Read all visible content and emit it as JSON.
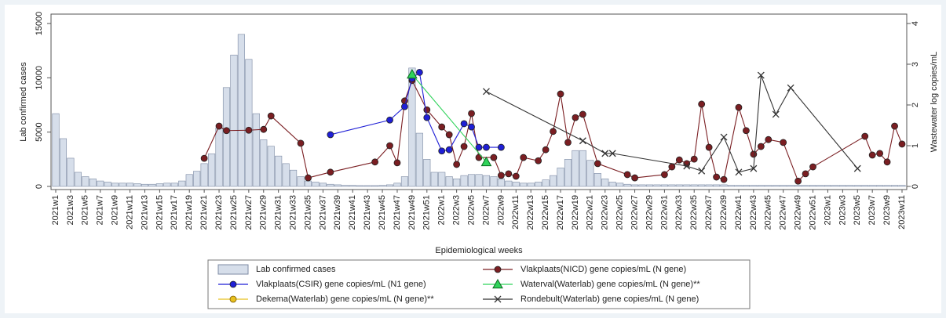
{
  "chart_data": {
    "type": "combo",
    "y_label": "Lab confirmed cases",
    "y2_label": "Wastewater log copies/mL",
    "x_label": "Epidemiological weeks",
    "categories": [
      "2021w1",
      null,
      "2021w3",
      null,
      "2021w5",
      null,
      "2021w7",
      null,
      "2021w9",
      null,
      "2021w11",
      null,
      "2021w13",
      null,
      "2021w15",
      null,
      "2021w17",
      null,
      "2021w19",
      null,
      "2021w21",
      null,
      "2021w23",
      null,
      "2021w25",
      null,
      "2021w27",
      null,
      "2021w29",
      null,
      "2021w31",
      null,
      "2021w33",
      null,
      "2021w35",
      null,
      "2021w37",
      null,
      "2021w39",
      null,
      "2021w41",
      null,
      "2021w43",
      null,
      "2021w45",
      null,
      "2021w47",
      null,
      "2021w49",
      null,
      "2021w51",
      null,
      "2022w1",
      null,
      "2022w3",
      null,
      "2022w5",
      null,
      "2022w7",
      null,
      "2022w9",
      null,
      "2022w11",
      null,
      "2022w13",
      null,
      "2022w15",
      null,
      "2022w17",
      null,
      "2022w19",
      null,
      "2022w21",
      null,
      "2022w23",
      null,
      "2022w25",
      null,
      "2022w27",
      null,
      "2022w29",
      null,
      "2022w31",
      null,
      "2022w33",
      null,
      "2022w35",
      null,
      "2022w37",
      null,
      "2022w39",
      null,
      "2022w41",
      null,
      "2022w43",
      null,
      "2022w45",
      null,
      "2022w47",
      null,
      "2022w49",
      null,
      "2022w51",
      null,
      "2023w1",
      null,
      "2023w3",
      null,
      "2023w5",
      null,
      "2023w7",
      null,
      "2023w9",
      null,
      "2023w11"
    ],
    "ylim": [
      0,
      15000
    ],
    "yticks": [
      0,
      5000,
      10000,
      15000
    ],
    "y2lim": [
      0,
      4
    ],
    "y2ticks": [
      0,
      1,
      2,
      3,
      4
    ],
    "series": [
      {
        "name": "Lab confirmed cases",
        "type": "bar",
        "color": "#d6deea",
        "values": [
          6700,
          4400,
          2600,
          1300,
          900,
          700,
          500,
          400,
          300,
          300,
          300,
          250,
          200,
          200,
          250,
          300,
          300,
          500,
          1100,
          1400,
          2100,
          3000,
          5400,
          9100,
          12100,
          14000,
          11700,
          6700,
          4300,
          3700,
          2800,
          2100,
          1500,
          900,
          500,
          400,
          300,
          200,
          150,
          100,
          100,
          80,
          80,
          80,
          100,
          150,
          300,
          900,
          10900,
          4900,
          2500,
          1300,
          1300,
          900,
          700,
          1000,
          1100,
          1100,
          1000,
          900,
          700,
          500,
          400,
          300,
          300,
          400,
          600,
          1000,
          1700,
          2500,
          3300,
          3300,
          2400,
          1200,
          700,
          400,
          300,
          200,
          150,
          150,
          150,
          150,
          150,
          150,
          150,
          150,
          150,
          150,
          150,
          150,
          150,
          100,
          100,
          100,
          100,
          100,
          100,
          100,
          100,
          100,
          100,
          100,
          100,
          100,
          100,
          100,
          100,
          100,
          100,
          100,
          100,
          100,
          100,
          100,
          100
        ]
      },
      {
        "name": "Vlakplaats(NICD) gene copies/mL (N gene)",
        "type": "line",
        "axis": "y2",
        "marker": "circle",
        "color": "#7a1e22",
        "values": [
          null,
          null,
          null,
          null,
          null,
          null,
          null,
          null,
          null,
          null,
          null,
          null,
          null,
          null,
          null,
          null,
          null,
          null,
          null,
          null,
          0.69,
          null,
          1.48,
          1.37,
          null,
          null,
          1.38,
          null,
          1.4,
          1.73,
          null,
          null,
          null,
          1.06,
          0.21,
          null,
          null,
          0.35,
          null,
          null,
          null,
          null,
          null,
          0.6,
          null,
          1.0,
          0.58,
          2.1,
          2.6,
          null,
          1.88,
          null,
          1.46,
          1.27,
          0.54,
          0.98,
          1.79,
          0.71,
          null,
          0.71,
          0.27,
          0.31,
          0.25,
          0.71,
          null,
          0.63,
          0.9,
          1.35,
          2.27,
          1.08,
          1.69,
          1.77,
          null,
          0.56,
          null,
          null,
          null,
          0.29,
          0.21,
          null,
          null,
          null,
          0.29,
          0.48,
          0.65,
          0.56,
          0.67,
          2.02,
          0.96,
          0.23,
          0.17,
          null,
          1.94,
          1.37,
          0.79,
          0.98,
          1.15,
          null,
          1.08,
          null,
          0.13,
          0.31,
          0.48,
          null,
          null,
          null,
          null,
          null,
          null,
          1.23,
          0.77,
          0.81,
          0.6,
          1.48,
          1.04
        ]
      },
      {
        "name": "Vlakplaats(CSIR) gene copies/mL (N1 gene)",
        "type": "line",
        "axis": "y2",
        "marker": "circle",
        "color": "#1f1fd6",
        "values": [
          null,
          null,
          null,
          null,
          null,
          null,
          null,
          null,
          null,
          null,
          null,
          null,
          null,
          null,
          null,
          null,
          null,
          null,
          null,
          null,
          null,
          null,
          null,
          null,
          null,
          null,
          null,
          null,
          null,
          null,
          null,
          null,
          null,
          null,
          null,
          null,
          null,
          1.27,
          null,
          null,
          null,
          null,
          null,
          null,
          null,
          1.63,
          null,
          1.96,
          2.65,
          2.8,
          1.69,
          null,
          0.87,
          0.9,
          null,
          1.54,
          1.46,
          0.96,
          0.96,
          null,
          0.96,
          null,
          null,
          null,
          null,
          null,
          null,
          null,
          null,
          null,
          null,
          null,
          null,
          null,
          null,
          null,
          null,
          null,
          null,
          null,
          null,
          null,
          null,
          null,
          null,
          null,
          null,
          null,
          null,
          null,
          null,
          null,
          null,
          null,
          null,
          null,
          null,
          null,
          null,
          null,
          null,
          null,
          null,
          null,
          null,
          null,
          null,
          null,
          null,
          null,
          null,
          null,
          null,
          null,
          null
        ]
      },
      {
        "name": "Waterval(Waterlab) gene copies/mL (N gene)**",
        "type": "line",
        "axis": "y2",
        "marker": "triangle",
        "color": "#2fd35a",
        "values": [
          null,
          null,
          null,
          null,
          null,
          null,
          null,
          null,
          null,
          null,
          null,
          null,
          null,
          null,
          null,
          null,
          null,
          null,
          null,
          null,
          null,
          null,
          null,
          null,
          null,
          null,
          null,
          null,
          null,
          null,
          null,
          null,
          null,
          null,
          null,
          null,
          null,
          null,
          null,
          null,
          null,
          null,
          null,
          null,
          null,
          null,
          null,
          null,
          2.75,
          null,
          null,
          null,
          null,
          null,
          null,
          null,
          null,
          null,
          0.6,
          null,
          null,
          null,
          null,
          null,
          null,
          null,
          null,
          null,
          null,
          null,
          null,
          null,
          null,
          null,
          null,
          null,
          null,
          null,
          null,
          null,
          null,
          null,
          null,
          null,
          null,
          null,
          null,
          null,
          null,
          null,
          null,
          null,
          null,
          null,
          null,
          null,
          null,
          null,
          null,
          null,
          null,
          null,
          null,
          null,
          null,
          null,
          null,
          null,
          null,
          null,
          null,
          null,
          null,
          null,
          null
        ]
      },
      {
        "name": "Dekema(Waterlab) gene copies/mL (N gene)**",
        "type": "line",
        "axis": "y2",
        "marker": "circle",
        "color": "#e8c01e",
        "values": [
          null,
          null,
          null,
          null,
          null,
          null,
          null,
          null,
          null,
          null,
          null,
          null,
          null,
          null,
          null,
          null,
          null,
          null,
          null,
          null,
          null,
          null,
          null,
          null,
          null,
          null,
          null,
          null,
          null,
          null,
          null,
          null,
          null,
          null,
          null,
          null,
          null,
          null,
          null,
          null,
          null,
          null,
          null,
          null,
          null,
          null,
          null,
          null,
          null,
          null,
          null,
          null,
          null,
          null,
          null,
          null,
          null,
          null,
          null,
          null,
          null,
          null,
          null,
          null,
          null,
          null,
          null,
          null,
          null,
          null,
          null,
          null,
          null,
          null,
          null,
          null,
          null,
          null,
          null,
          null,
          null,
          null,
          null,
          null,
          null,
          null,
          null,
          null,
          null,
          null,
          null,
          null,
          null,
          null,
          null,
          null,
          null,
          null,
          null,
          null,
          null,
          null,
          null,
          null,
          null,
          null,
          null,
          null,
          null,
          null,
          null,
          null,
          null,
          null,
          null
        ]
      },
      {
        "name": "Rondebult(Waterlab) gene copies/mL (N gene)",
        "type": "line",
        "axis": "y2",
        "marker": "x",
        "color": "#333333",
        "values": [
          null,
          null,
          null,
          null,
          null,
          null,
          null,
          null,
          null,
          null,
          null,
          null,
          null,
          null,
          null,
          null,
          null,
          null,
          null,
          null,
          null,
          null,
          null,
          null,
          null,
          null,
          null,
          null,
          null,
          null,
          null,
          null,
          null,
          null,
          null,
          null,
          null,
          null,
          null,
          null,
          null,
          null,
          null,
          null,
          null,
          null,
          null,
          null,
          null,
          null,
          null,
          null,
          null,
          null,
          null,
          null,
          null,
          null,
          2.33,
          null,
          null,
          null,
          null,
          null,
          null,
          null,
          null,
          null,
          null,
          null,
          null,
          1.12,
          null,
          null,
          0.81,
          0.81,
          null,
          null,
          null,
          null,
          null,
          null,
          null,
          null,
          null,
          0.5,
          null,
          0.38,
          null,
          null,
          1.21,
          null,
          0.35,
          null,
          0.44,
          2.73,
          null,
          1.77,
          null,
          2.42,
          null,
          null,
          null,
          null,
          null,
          null,
          null,
          null,
          0.44,
          null,
          null,
          null,
          null,
          null,
          null
        ]
      }
    ]
  }
}
